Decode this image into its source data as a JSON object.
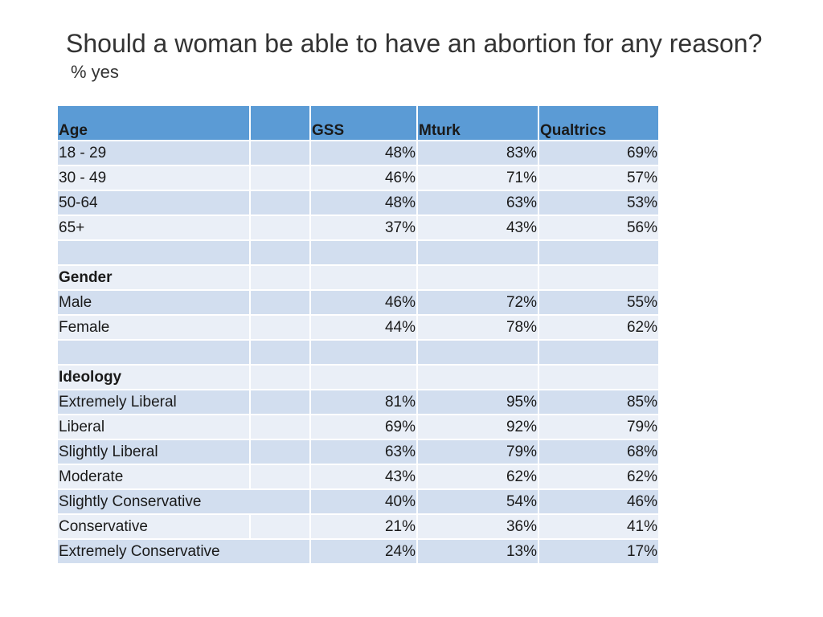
{
  "title": {
    "main": "Should a woman be able to have an abortion for any reason?",
    "sub": "% yes"
  },
  "table": {
    "headers": [
      "Age",
      "",
      "GSS",
      "Mturk",
      "Qualtrics"
    ],
    "rows": [
      {
        "label": "18 - 29",
        "gss": "48%",
        "mturk": "83%",
        "qualtrics": "69%"
      },
      {
        "label": "30 - 49",
        "gss": "46%",
        "mturk": "71%",
        "qualtrics": "57%"
      },
      {
        "label": "50-64",
        "gss": "48%",
        "mturk": "63%",
        "qualtrics": "53%"
      },
      {
        "label": "65+",
        "gss": "37%",
        "mturk": "43%",
        "qualtrics": "56%"
      },
      {
        "label": "",
        "gss": "",
        "mturk": "",
        "qualtrics": ""
      },
      {
        "label": "Gender",
        "gss": "",
        "mturk": "",
        "qualtrics": "",
        "section": true
      },
      {
        "label": "Male",
        "gss": "46%",
        "mturk": "72%",
        "qualtrics": "55%"
      },
      {
        "label": "Female",
        "gss": "44%",
        "mturk": "78%",
        "qualtrics": "62%"
      },
      {
        "label": "",
        "gss": "",
        "mturk": "",
        "qualtrics": ""
      },
      {
        "label": "Ideology",
        "gss": "",
        "mturk": "",
        "qualtrics": "",
        "section": true
      },
      {
        "label": "Extremely Liberal",
        "gss": "81%",
        "mturk": "95%",
        "qualtrics": "85%"
      },
      {
        "label": "Liberal",
        "gss": "69%",
        "mturk": "92%",
        "qualtrics": "79%"
      },
      {
        "label": "Slightly Liberal",
        "gss": "63%",
        "mturk": "79%",
        "qualtrics": "68%"
      },
      {
        "label": "Moderate",
        "gss": "43%",
        "mturk": "62%",
        "qualtrics": "62%"
      },
      {
        "label": "Slightly Conservative",
        "gss": "40%",
        "mturk": "54%",
        "qualtrics": "46%",
        "wide": true
      },
      {
        "label": "Conservative",
        "gss": "21%",
        "mturk": "36%",
        "qualtrics": "41%"
      },
      {
        "label": "Extremely Conservative",
        "gss": "24%",
        "mturk": "13%",
        "qualtrics": "17%",
        "wide": true
      }
    ]
  }
}
